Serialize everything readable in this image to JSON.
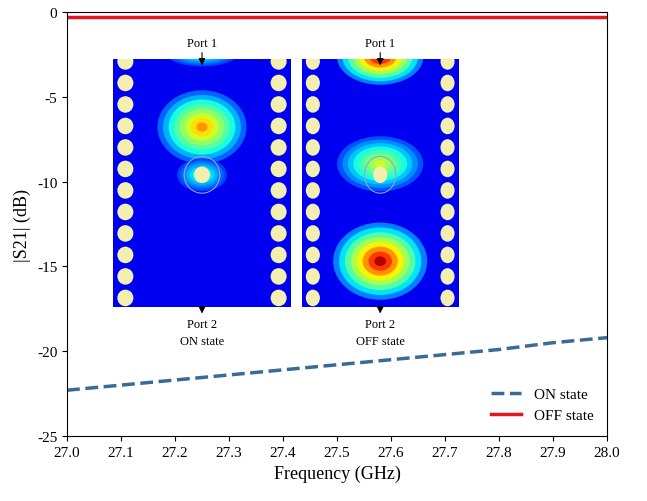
{
  "chart_data": {
    "type": "line",
    "x_label": "Frequency (GHz)",
    "y_label": "|S21| (dB)",
    "x": [
      27.0,
      27.1,
      27.2,
      27.3,
      27.4,
      27.5,
      27.6,
      27.7,
      27.8,
      27.9,
      28.0
    ],
    "series": [
      {
        "name": "ON state",
        "color": "#3a6b94",
        "line_style": "dashed",
        "values": [
          -22.3,
          -22.0,
          -21.7,
          -21.4,
          -21.1,
          -20.8,
          -20.5,
          -20.2,
          -19.9,
          -19.5,
          -19.2
        ]
      },
      {
        "name": "OFF state",
        "color": "#e8141b",
        "line_style": "solid",
        "values": [
          -0.3,
          -0.3,
          -0.3,
          -0.3,
          -0.3,
          -0.3,
          -0.3,
          -0.3,
          -0.3,
          -0.3,
          -0.3
        ]
      }
    ],
    "xlim": [
      27.0,
      28.0
    ],
    "xticks": [
      27.0,
      27.1,
      27.2,
      27.3,
      27.4,
      27.5,
      27.6,
      27.7,
      27.8,
      27.9,
      28.0
    ],
    "ylim": [
      -25,
      0
    ],
    "yticks": [
      -25,
      -20,
      -15,
      -10,
      -5,
      0
    ],
    "grid": false,
    "legend": "lower right",
    "insets": [
      {
        "top_label": "Port 1",
        "bottom_label": "Port 2",
        "state_label": "ON state"
      },
      {
        "top_label": "Port 1",
        "bottom_label": "Port 2",
        "state_label": "OFF state"
      }
    ]
  }
}
